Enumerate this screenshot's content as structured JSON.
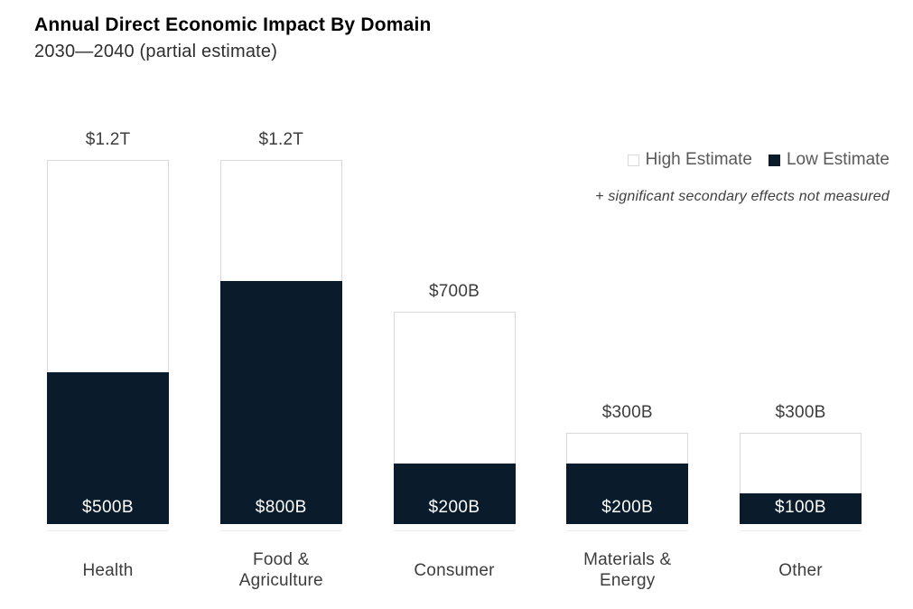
{
  "header": {
    "title": "Annual Direct Economic Impact By Domain",
    "subtitle": "2030—2040 (partial estimate)"
  },
  "legend": {
    "high_label": "High Estimate",
    "low_label": "Low Estimate",
    "note": "+ significant secondary effects not measured"
  },
  "colors": {
    "low_fill": "#0a1c2b",
    "high_fill": "#ffffff",
    "high_border": "#d9d9d9",
    "value_label_dark": "#3d3d3d",
    "value_label_light": "#ffffff",
    "legend_text": "#595959",
    "note_text": "#404040"
  },
  "chart_data": {
    "type": "bar",
    "subtype": "overlapped-range-bars",
    "title": "Annual Direct Economic Impact By Domain",
    "subtitle": "2030—2040 (partial estimate)",
    "categories": [
      "Health",
      "Food & Agriculture",
      "Consumer",
      "Materials & Energy",
      "Other"
    ],
    "series": [
      {
        "name": "High Estimate",
        "values_billions": [
          1200,
          1200,
          700,
          300,
          300
        ],
        "data_labels": [
          "$1.2T",
          "$1.2T",
          "$700B",
          "$300B",
          "$300B"
        ],
        "label_position": "above-bar",
        "fill": "#ffffff"
      },
      {
        "name": "Low Estimate",
        "values_billions": [
          500,
          800,
          200,
          200,
          100
        ],
        "data_labels": [
          "$500B",
          "$800B",
          "$200B",
          "$200B",
          "$100B"
        ],
        "label_position": "inside-bottom",
        "fill": "#0a1c2b"
      }
    ],
    "ylim_billions": [
      0,
      1200
    ],
    "y_axis_shown": false,
    "grid": false,
    "legend_position": "top-right",
    "annotation": "+ significant secondary effects not measured"
  }
}
